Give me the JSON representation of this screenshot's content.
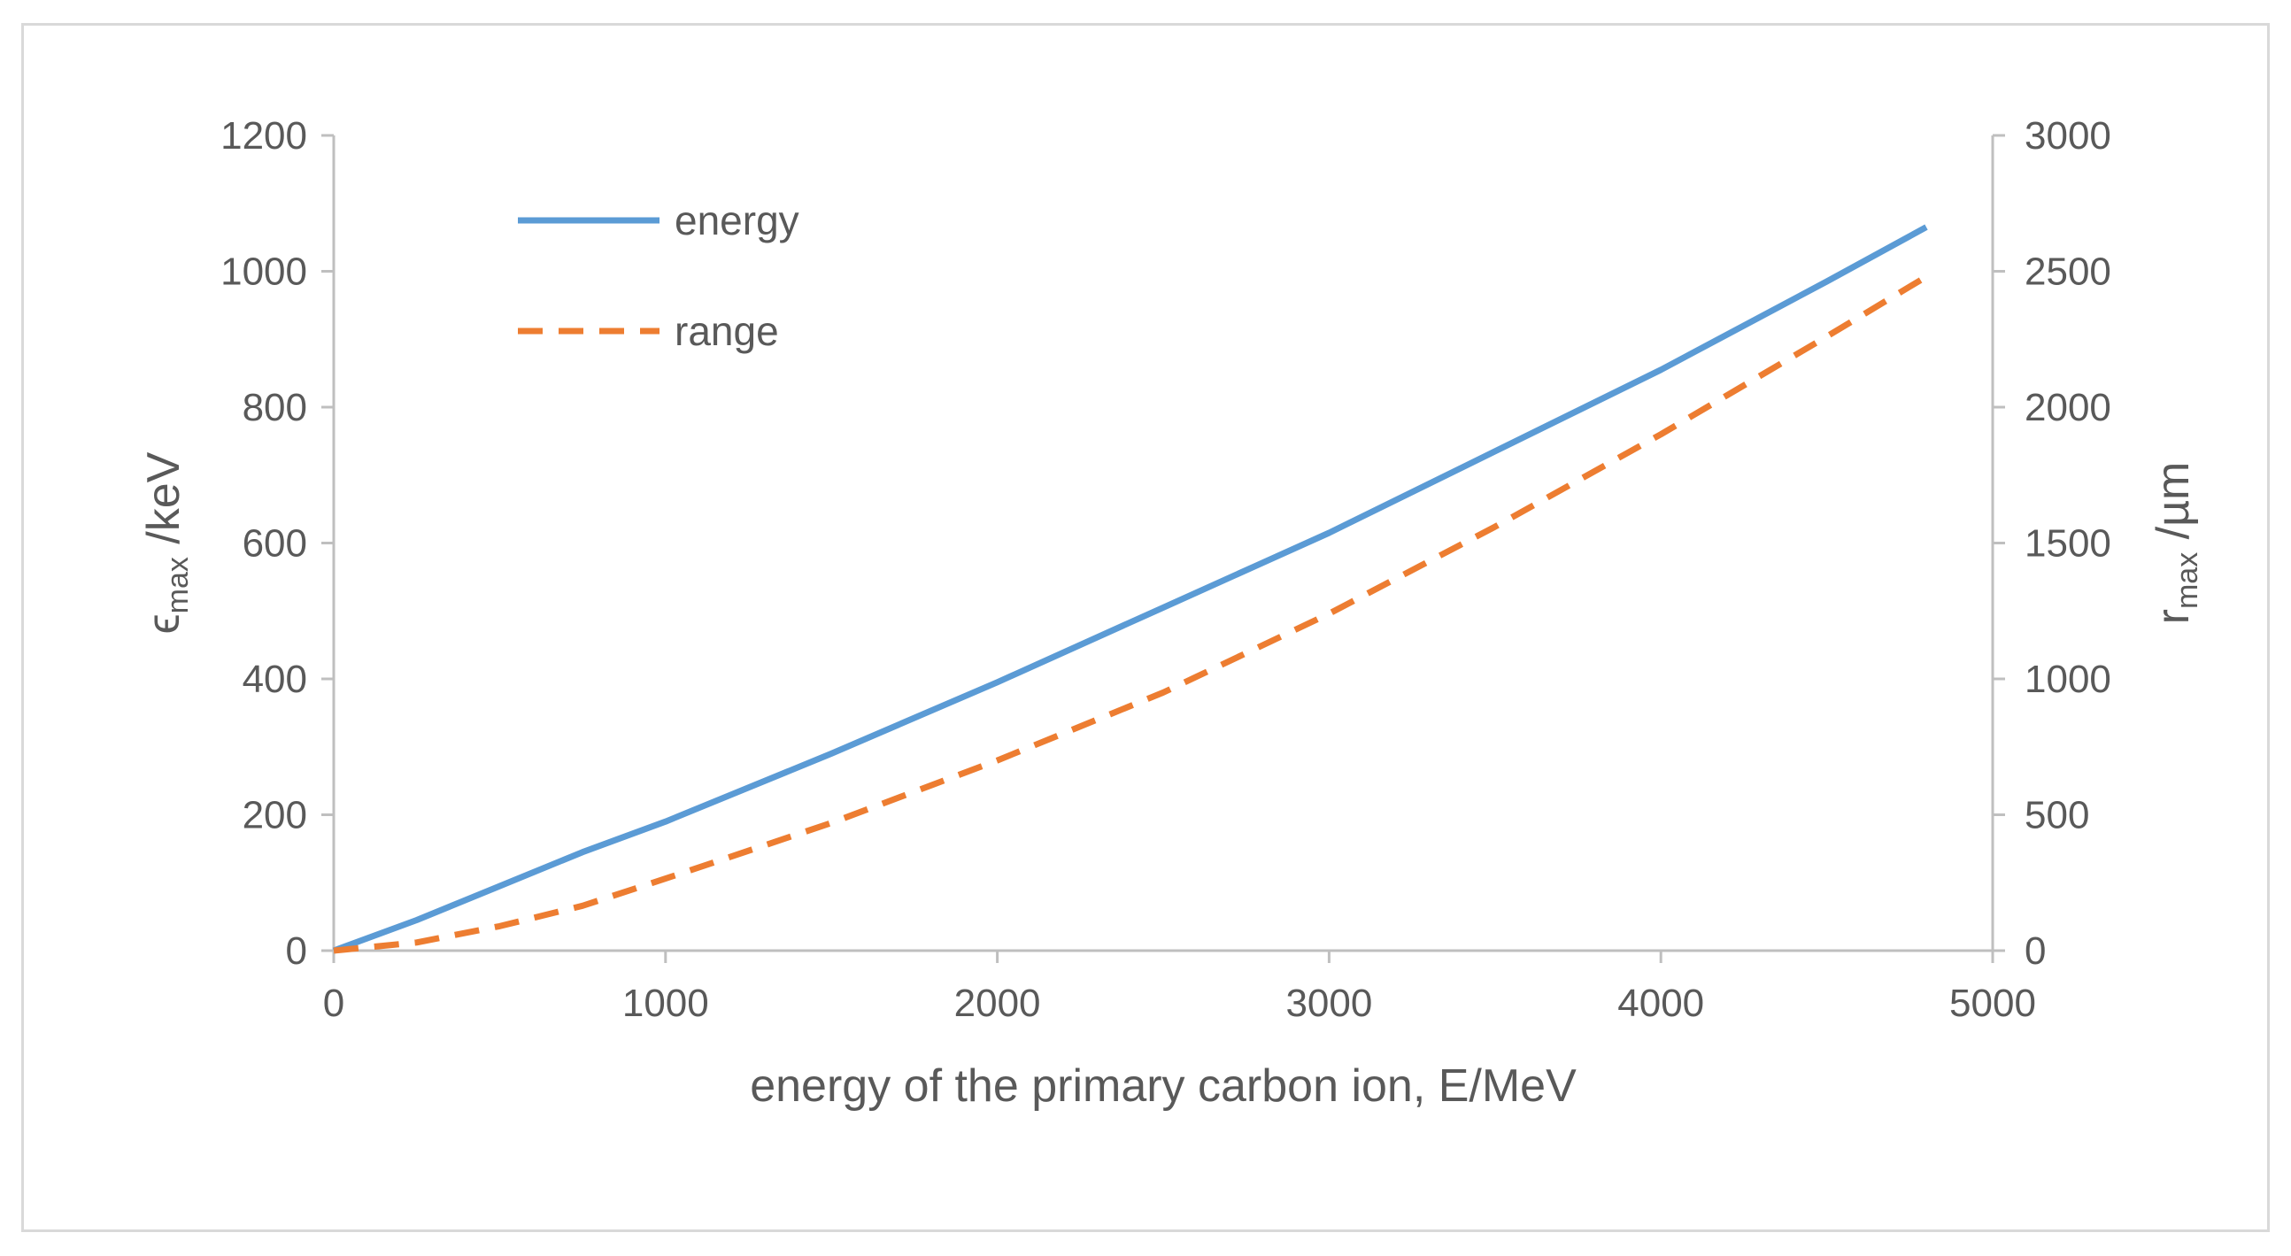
{
  "chart_data": {
    "type": "line",
    "x_label": "energy of the primary carbon ion, E/MeV",
    "y_left_label": {
      "symbol": "ϵ",
      "sub": "max",
      "unit": " /keV"
    },
    "y_right_label": {
      "symbol": "r",
      "sub": "max",
      "unit": " /µm"
    },
    "x_range": [
      0,
      5000
    ],
    "y_left_range": [
      0,
      1200
    ],
    "y_right_range": [
      0,
      3000
    ],
    "x_ticks": [
      "0",
      "1000",
      "2000",
      "3000",
      "4000",
      "5000"
    ],
    "y_left_ticks": [
      "0",
      "200",
      "400",
      "600",
      "800",
      "1000",
      "1200"
    ],
    "y_right_ticks": [
      "0",
      "500",
      "1000",
      "1500",
      "2000",
      "2500",
      "3000"
    ],
    "gridlines": false,
    "legend_position": "top-left",
    "colors": {
      "energy": "#5b9bd5",
      "range": "#ed7d31",
      "axis": "#bfbfbf",
      "text": "#595959"
    },
    "series": [
      {
        "name": "energy",
        "axis": "left",
        "style": "solid",
        "x": [
          0,
          250,
          500,
          750,
          1000,
          1500,
          2000,
          2500,
          3000,
          3500,
          4000,
          4500,
          4800
        ],
        "y": [
          0,
          45,
          95,
          145,
          190,
          290,
          395,
          505,
          615,
          735,
          855,
          985,
          1065
        ]
      },
      {
        "name": "range",
        "axis": "right",
        "style": "dashed",
        "x": [
          0,
          250,
          500,
          750,
          1000,
          1500,
          2000,
          2500,
          3000,
          3500,
          4000,
          4500,
          4800
        ],
        "y": [
          0,
          30,
          90,
          165,
          265,
          470,
          700,
          950,
          1240,
          1560,
          1900,
          2260,
          2480
        ]
      }
    ]
  }
}
